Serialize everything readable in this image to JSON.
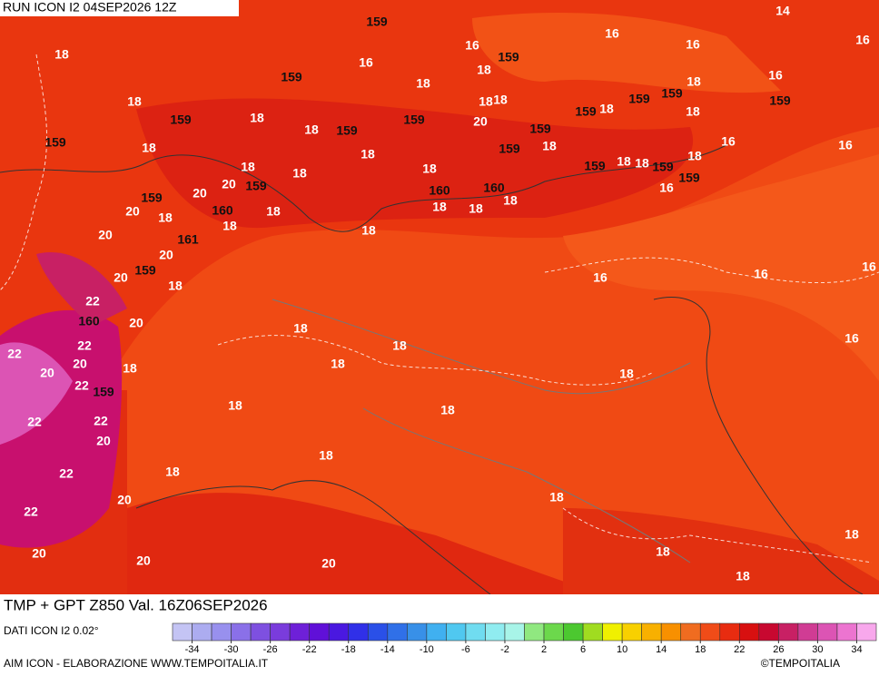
{
  "header": {
    "run": "RUN ICON I2 04SEP2026 12Z"
  },
  "footer": {
    "title": "TMP + GPT Z850 Val. 16Z06SEP2026",
    "resolution": "DATI ICON I2 0.02°",
    "credit": "AIM ICON - ELABORAZIONE WWW.TEMPOITALIA.IT",
    "copyright": "©TEMPOITALIA"
  },
  "colorbar": {
    "range": [
      -36,
      36
    ],
    "ticks": [
      -34,
      -30,
      -26,
      -22,
      -18,
      -14,
      -10,
      -6,
      -2,
      2,
      6,
      10,
      14,
      18,
      22,
      26,
      30,
      34
    ],
    "colors": [
      "#c4c4f4",
      "#acacf0",
      "#9890ee",
      "#8a70e8",
      "#7e50e0",
      "#7a3cdc",
      "#6e20d8",
      "#6010d8",
      "#4a18e0",
      "#3030e8",
      "#2a50e8",
      "#3070e8",
      "#3890e8",
      "#40b0f0",
      "#50c8f0",
      "#70dcf0",
      "#90ecf0",
      "#a8f4e8",
      "#90e880",
      "#6cd84c",
      "#4cc830",
      "#a0dc20",
      "#f0f000",
      "#f8d000",
      "#f8b000",
      "#f89000",
      "#f06c20",
      "#f04c18",
      "#e82c10",
      "#d81010",
      "#c80830",
      "#c82064",
      "#d03c94",
      "#dc54b4",
      "#ec74d0",
      "#f8a8ec"
    ]
  },
  "geopotential_labels": [
    159,
    159,
    159,
    159,
    159,
    159,
    159,
    159,
    159,
    159,
    159,
    159,
    159,
    159,
    159,
    159,
    159,
    159,
    160,
    161,
    159,
    160,
    159,
    160,
    160
  ],
  "temperature_labels": [
    14,
    18,
    16,
    16,
    16,
    16,
    16,
    18,
    18,
    18,
    18,
    18,
    18,
    18,
    20,
    18,
    18,
    18,
    18,
    16,
    18,
    16,
    16,
    18,
    18,
    18,
    18,
    18,
    18,
    18,
    20,
    20,
    20,
    18,
    18,
    18,
    18,
    18,
    18,
    16,
    20,
    18,
    20,
    20,
    18,
    16,
    16,
    16,
    22,
    20,
    18,
    22,
    18,
    16,
    22,
    20,
    20,
    18,
    18,
    18,
    22,
    18,
    18,
    22,
    22,
    20,
    18,
    18,
    22,
    20,
    18,
    22,
    20,
    20,
    20,
    18,
    18,
    18,
    18,
    20
  ]
}
